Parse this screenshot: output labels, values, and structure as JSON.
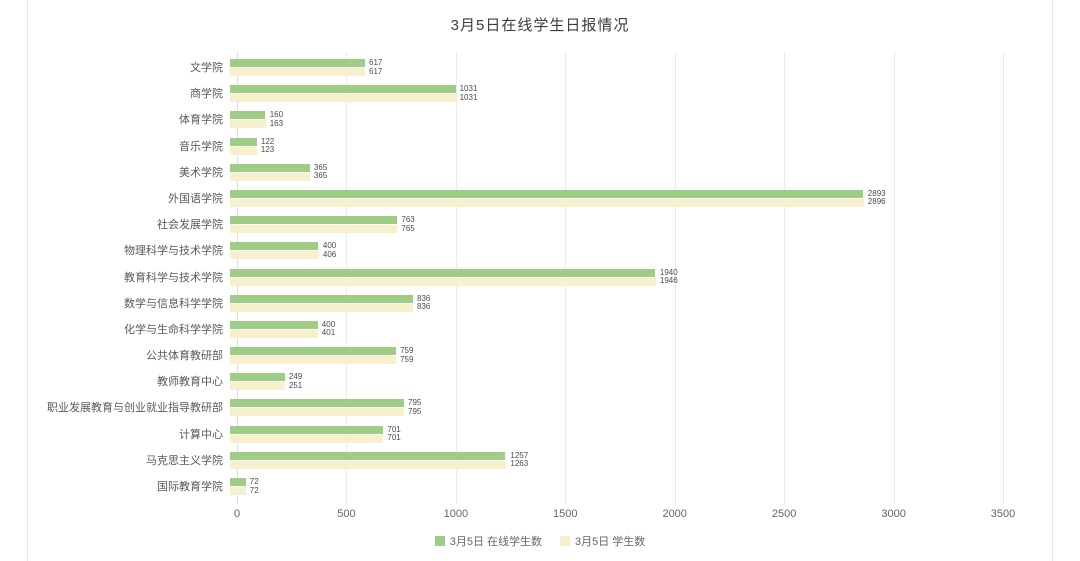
{
  "chart_data": {
    "type": "bar",
    "orientation": "horizontal",
    "title": "3月5日在线学生日报情况",
    "categories": [
      "文学院",
      "商学院",
      "体育学院",
      "音乐学院",
      "美术学院",
      "外国语学院",
      "社会发展学院",
      "物理科学与技术学院",
      "教育科学与技术学院",
      "数学与信息科学学院",
      "化学与生命科学学院",
      "公共体育教研部",
      "教师教育中心",
      "职业发展教育与创业就业指导教研部",
      "计算中心",
      "马克思主义学院",
      "国际教育学院"
    ],
    "series": [
      {
        "name": "3月5日 在线学生数",
        "color": "#a0cd85",
        "values": [
          617,
          1031,
          160,
          122,
          365,
          2893,
          763,
          400,
          1940,
          836,
          400,
          759,
          249,
          795,
          701,
          1257,
          72
        ]
      },
      {
        "name": "3月5日 学生数",
        "color": "#f6f0cd",
        "values": [
          617,
          1031,
          163,
          123,
          365,
          2896,
          765,
          406,
          1946,
          836,
          401,
          759,
          251,
          795,
          701,
          1263,
          72
        ]
      }
    ],
    "xlabel": "",
    "ylabel": "",
    "xlim": [
      0,
      3500
    ],
    "x_ticks": [
      0,
      500,
      1000,
      1500,
      2000,
      2500,
      3000,
      3500
    ],
    "grid": true,
    "legend_position": "bottom"
  }
}
